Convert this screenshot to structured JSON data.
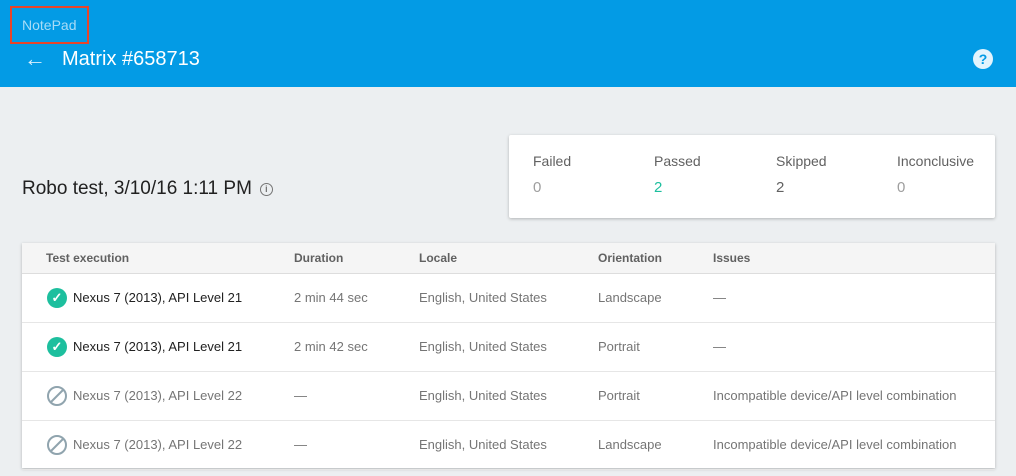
{
  "header": {
    "app_name": "NotePad",
    "title": "Matrix #658713",
    "help_icon": "help-icon",
    "back_icon": "arrow-back-icon",
    "color": "#039be5"
  },
  "test_title": "Robo test, 3/10/16 1:11 PM",
  "summary": [
    {
      "label": "Failed",
      "value": "0"
    },
    {
      "label": "Passed",
      "value": "2",
      "color": "#1dbf9e"
    },
    {
      "label": "Skipped",
      "value": "2"
    },
    {
      "label": "Inconclusive",
      "value": "0"
    }
  ],
  "table": {
    "columns": [
      "Test execution",
      "Duration",
      "Locale",
      "Orientation",
      "Issues"
    ],
    "rows": [
      {
        "status": "passed",
        "execution": "Nexus 7 (2013), API Level 21",
        "duration": "2 min 44 sec",
        "locale": "English, United States",
        "orientation": "Landscape",
        "issues": "—"
      },
      {
        "status": "passed",
        "execution": "Nexus 7 (2013), API Level 21",
        "duration": "2 min 42 sec",
        "locale": "English, United States",
        "orientation": "Portrait",
        "issues": "—"
      },
      {
        "status": "skipped",
        "execution": "Nexus 7 (2013), API Level 22",
        "duration": "—",
        "locale": "English, United States",
        "orientation": "Portrait",
        "issues": "Incompatible device/API level combination"
      },
      {
        "status": "skipped",
        "execution": "Nexus 7 (2013), API Level 22",
        "duration": "—",
        "locale": "English, United States",
        "orientation": "Landscape",
        "issues": "Incompatible device/API level combination"
      }
    ]
  }
}
